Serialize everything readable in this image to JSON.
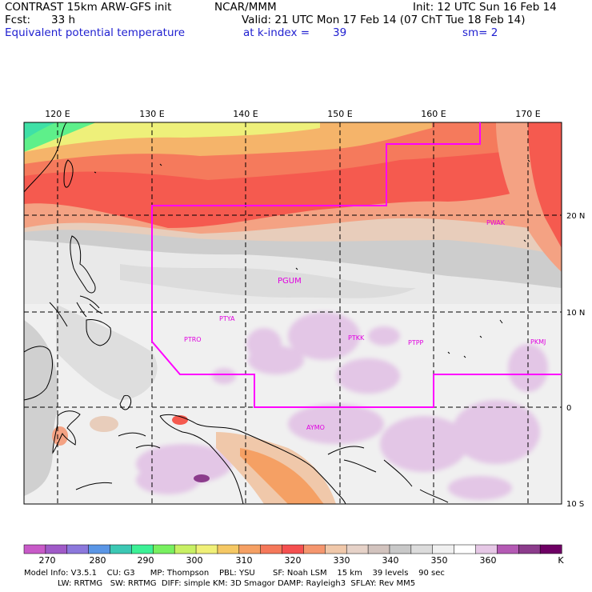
{
  "header": {
    "model": "CONTRAST 15km ARW-GFS init",
    "org": "NCAR/MMM",
    "init": "Init: 12 UTC Sun 16 Feb 14",
    "fcst_label": "Fcst:",
    "fcst_value": "33 h",
    "valid": "Valid: 21 UTC Mon 17 Feb 14 (07 ChT Tue 18 Feb 14)",
    "field": "Equivalent potential temperature",
    "level_label": "at k-index =",
    "level_value": "39",
    "smoothing": "sm= 2"
  },
  "map": {
    "lon_labels": [
      "120 E",
      "130 E",
      "140 E",
      "150 E",
      "160 E",
      "170 E"
    ],
    "lat_labels": [
      "20 N",
      "10 N",
      "0",
      "10 S"
    ],
    "stations": [
      "PWAK",
      "PGUM",
      "PTYA",
      "PTRO",
      "PTKK",
      "PTPP",
      "PKMJ",
      "AYMO"
    ]
  },
  "colorbar": {
    "unit": "K",
    "tick_labels": [
      "270",
      "280",
      "290",
      "300",
      "310",
      "320",
      "330",
      "340",
      "350",
      "360"
    ],
    "colors": [
      "#c85ac8",
      "#a05ac8",
      "#8c78dc",
      "#5a96e6",
      "#3cc8b4",
      "#3cf096",
      "#78f060",
      "#c8f064",
      "#f0f078",
      "#f5c864",
      "#f5a064",
      "#f5785a",
      "#f55050",
      "#f5966e",
      "#f0c8aa",
      "#e6d2c8",
      "#d2c3be",
      "#c8c8c8",
      "#dcdcdc",
      "#f0f0f0",
      "#ffffff",
      "#e6c8e6",
      "#b45ab4",
      "#8c3c8c",
      "#6e0064"
    ]
  },
  "footer": {
    "line1": "Model Info: V3.5.1    CU: G3      MP: Thompson    PBL: YSU       SF: Noah LSM    15 km    39 levels    90 sec",
    "line2": "LW: RRTMG   SW: RRTMG  DIFF: simple KM: 3D Smagor DAMP: Rayleigh3  SFLAY: Rev MM5"
  }
}
